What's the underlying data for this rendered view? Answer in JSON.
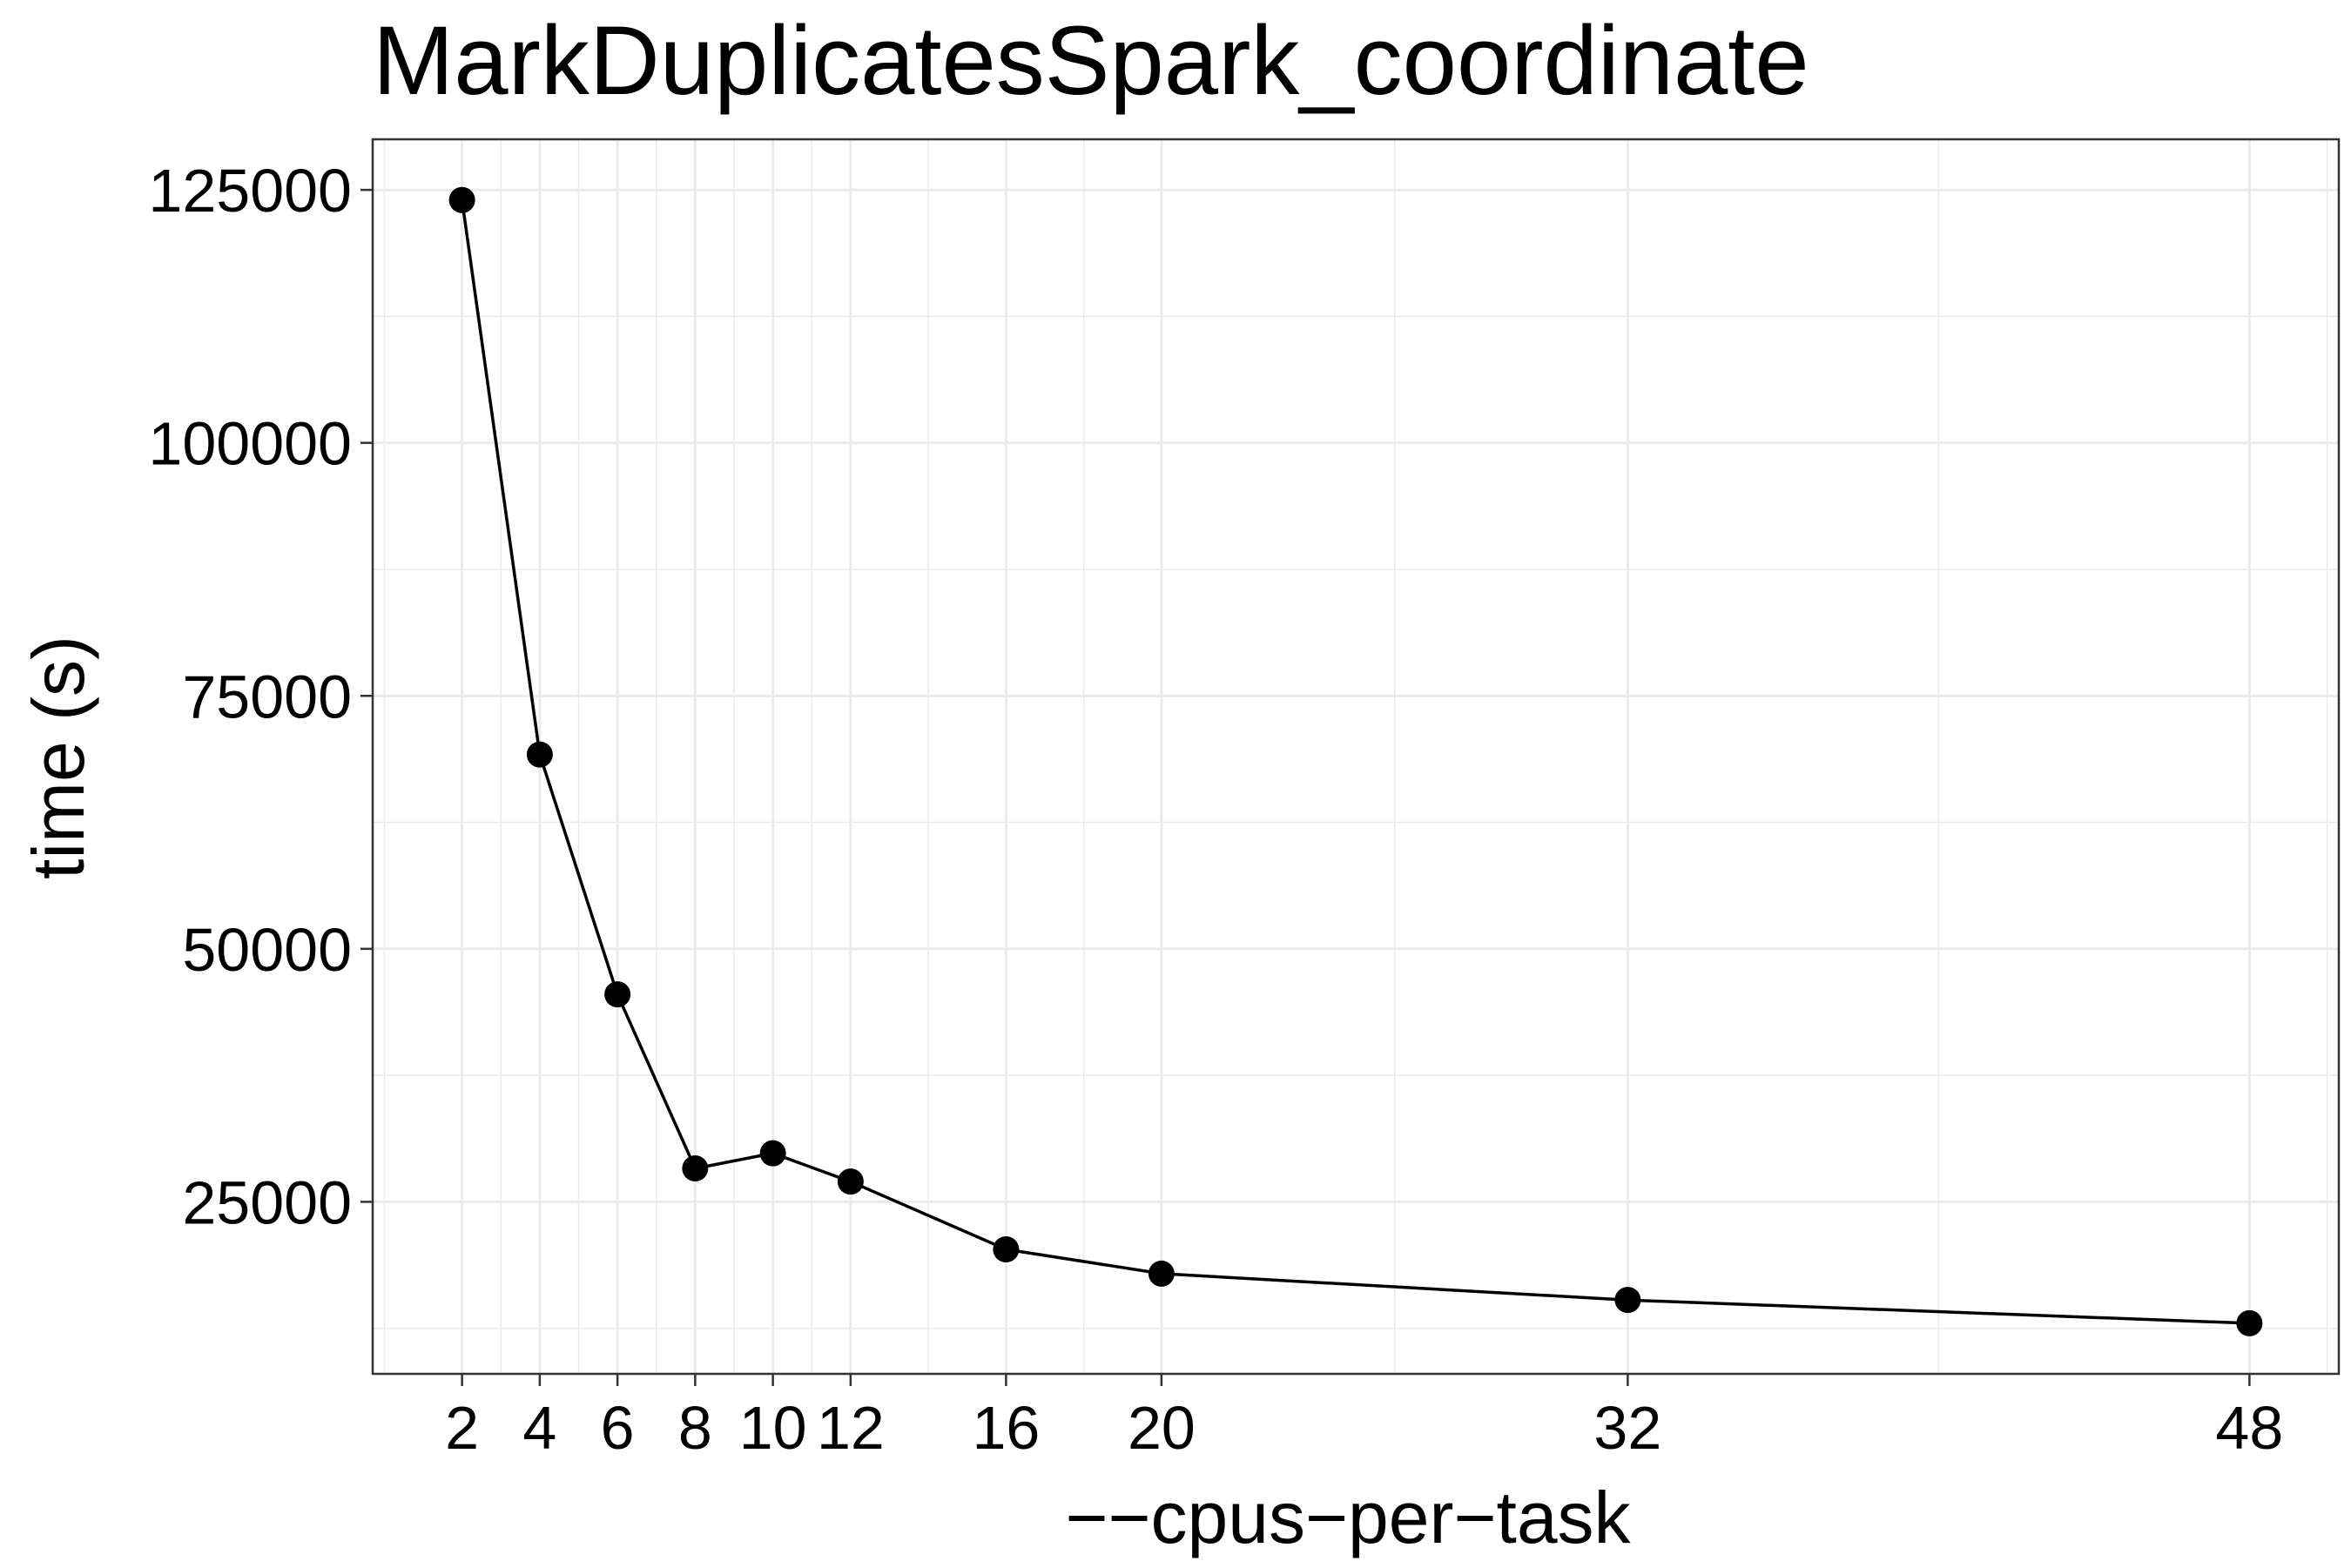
{
  "chart_data": {
    "type": "line",
    "title": "MarkDuplicatesSpark_coordinate",
    "xlabel": "−−cpus−per−task",
    "ylabel": "time (s)",
    "x": [
      2,
      4,
      6,
      8,
      10,
      12,
      16,
      20,
      32,
      48
    ],
    "series": [
      {
        "values": [
          124000,
          69200,
          45500,
          28300,
          29800,
          27000,
          20300,
          17900,
          15300,
          13000
        ]
      }
    ],
    "xticks": [
      2,
      4,
      6,
      8,
      10,
      12,
      16,
      20,
      32,
      48
    ],
    "xtick_labels": [
      "2",
      "4",
      "6",
      "8",
      "10",
      "12",
      "16",
      "20",
      "32",
      "48"
    ],
    "yticks": [
      25000,
      50000,
      75000,
      100000,
      125000
    ],
    "ytick_labels": [
      "25000",
      "50000",
      "75000",
      "100000",
      "125000"
    ],
    "xlim": [
      -0.3,
      50.3
    ],
    "ylim": [
      8000,
      130000
    ],
    "grid": true,
    "legend": "none",
    "colors": {
      "line": "#000000",
      "grid": "#ebebeb",
      "panel_border": "#333333"
    }
  }
}
